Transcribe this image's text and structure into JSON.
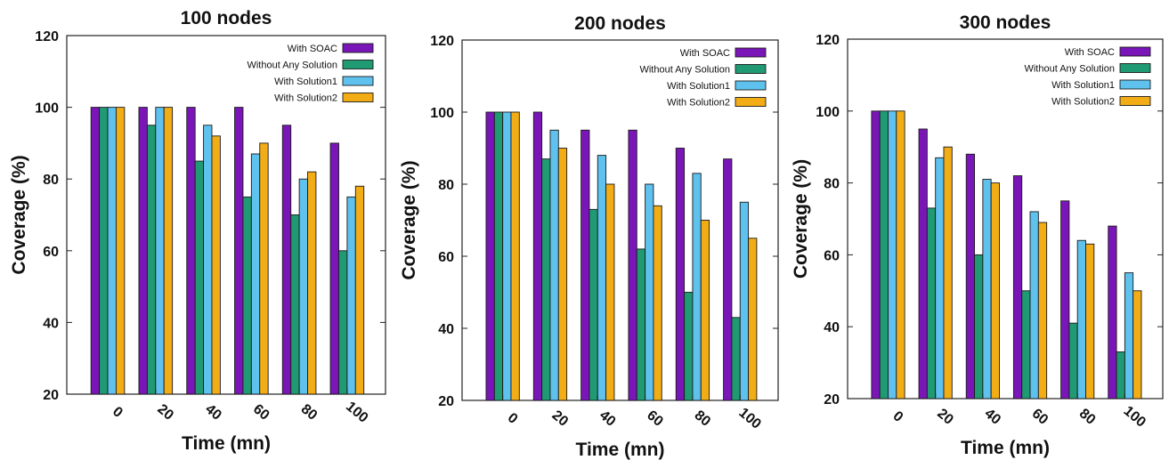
{
  "colors": {
    "with_soac": "#7a16b8",
    "without_any_solution": "#1f9a73",
    "with_solution1": "#5ec1ee",
    "with_solution2": "#f2ad16"
  },
  "chart_data": [
    {
      "type": "bar",
      "title": "100 nodes",
      "xlabel": "Time (mn)",
      "ylabel": "Coverage (%)",
      "ylim": [
        20,
        120
      ],
      "yticks": [
        20,
        40,
        60,
        80,
        100,
        120
      ],
      "categories": [
        "0",
        "20",
        "40",
        "60",
        "80",
        "100"
      ],
      "legend_position": "top-right",
      "series": [
        {
          "name": "With SOAC",
          "color": "#7a16b8",
          "values": [
            100,
            100,
            100,
            100,
            95,
            90
          ]
        },
        {
          "name": "Without Any Solution",
          "color": "#1f9a73",
          "values": [
            100,
            95,
            85,
            75,
            70,
            60
          ]
        },
        {
          "name": "With Solution1",
          "color": "#5ec1ee",
          "values": [
            100,
            100,
            95,
            87,
            80,
            75
          ]
        },
        {
          "name": "With Solution2",
          "color": "#f2ad16",
          "values": [
            100,
            100,
            92,
            90,
            82,
            78
          ]
        }
      ]
    },
    {
      "type": "bar",
      "title": "200 nodes",
      "xlabel": "Time (mn)",
      "ylabel": "Coverage (%)",
      "ylim": [
        20,
        120
      ],
      "yticks": [
        20,
        40,
        60,
        80,
        100,
        120
      ],
      "categories": [
        "0",
        "20",
        "40",
        "60",
        "80",
        "100"
      ],
      "legend_position": "top-right",
      "series": [
        {
          "name": "With SOAC",
          "color": "#7a16b8",
          "values": [
            100,
            100,
            95,
            95,
            90,
            87
          ]
        },
        {
          "name": "Without Any Solution",
          "color": "#1f9a73",
          "values": [
            100,
            87,
            73,
            62,
            50,
            43
          ]
        },
        {
          "name": "With Solution1",
          "color": "#5ec1ee",
          "values": [
            100,
            95,
            88,
            80,
            83,
            75
          ]
        },
        {
          "name": "With Solution2",
          "color": "#f2ad16",
          "values": [
            100,
            90,
            80,
            74,
            70,
            65
          ]
        }
      ]
    },
    {
      "type": "bar",
      "title": "300 nodes",
      "xlabel": "Time (mn)",
      "ylabel": "Coverage (%)",
      "ylim": [
        20,
        120
      ],
      "yticks": [
        20,
        40,
        60,
        80,
        100,
        120
      ],
      "categories": [
        "0",
        "20",
        "40",
        "60",
        "80",
        "100"
      ],
      "legend_position": "top-right",
      "series": [
        {
          "name": "With SOAC",
          "color": "#7a16b8",
          "values": [
            100,
            95,
            88,
            82,
            75,
            68
          ]
        },
        {
          "name": "Without Any Solution",
          "color": "#1f9a73",
          "values": [
            100,
            73,
            60,
            50,
            41,
            33
          ]
        },
        {
          "name": "With Solution1",
          "color": "#5ec1ee",
          "values": [
            100,
            87,
            81,
            72,
            64,
            55
          ]
        },
        {
          "name": "With Solution2",
          "color": "#f2ad16",
          "values": [
            100,
            90,
            80,
            69,
            63,
            50
          ]
        }
      ]
    }
  ]
}
